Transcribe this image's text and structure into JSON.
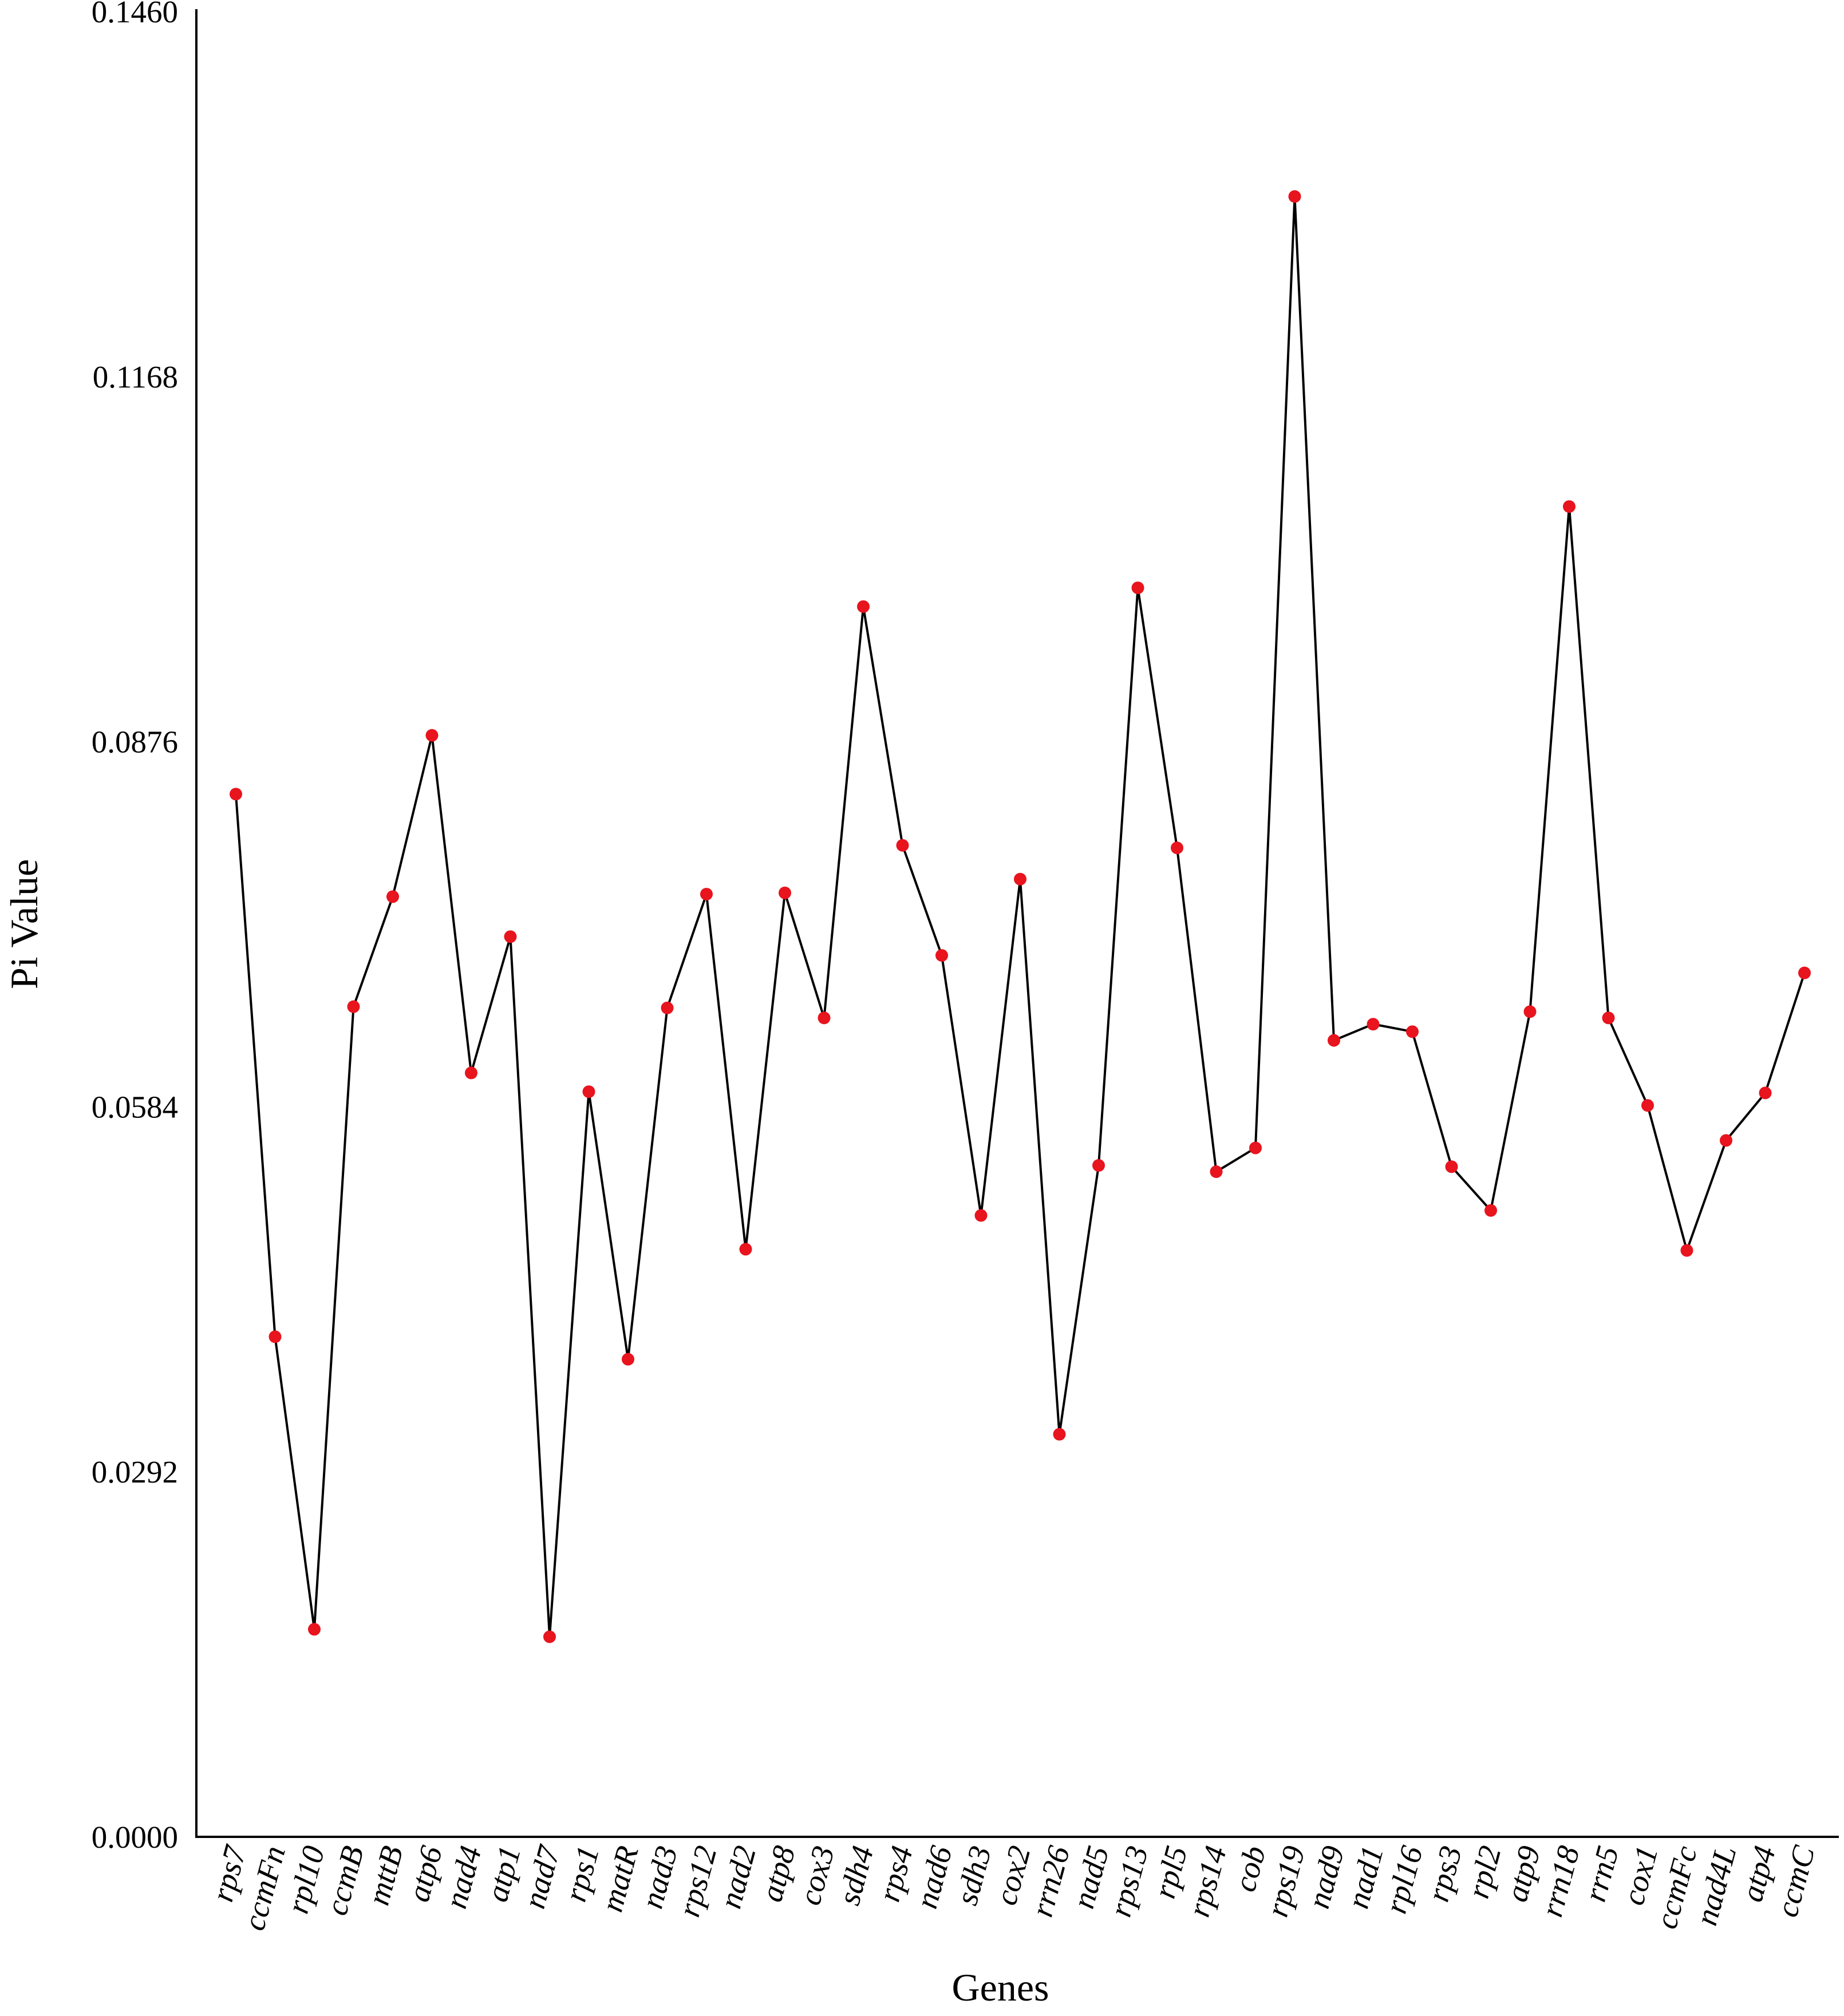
{
  "chart_data": {
    "type": "line",
    "title": "",
    "xlabel": "Genes",
    "ylabel": "Pi Value",
    "ylim": [
      0.0,
      0.146
    ],
    "yticks": [
      "0.0000",
      "0.0292",
      "0.0584",
      "0.0876",
      "0.1168",
      "0.1460"
    ],
    "grid": false,
    "legend": "none",
    "line_color": "#000000",
    "marker_color": "#e8141e",
    "categories": [
      "rps7",
      "ccmFn",
      "rpl10",
      "ccmB",
      "mttB",
      "atp6",
      "nad4",
      "atp1",
      "nad7",
      "rps1",
      "matR",
      "nad3",
      "rps12",
      "nad2",
      "atp8",
      "cox3",
      "sdh4",
      "rps4",
      "nad6",
      "sdh3",
      "cox2",
      "rrn26",
      "nad5",
      "rps13",
      "rpl5",
      "rps14",
      "cob",
      "rps19",
      "nad9",
      "nad1",
      "rpl16",
      "rps3",
      "rpl2",
      "atp9",
      "rrn18",
      "rrn5",
      "cox1",
      "ccmFc",
      "nad4L",
      "atp4",
      "ccmC"
    ],
    "series": [
      {
        "values": [
          0.0834,
          0.04,
          0.0166,
          0.0664,
          0.0752,
          0.0881,
          0.0611,
          0.072,
          0.016,
          0.0596,
          0.0382,
          0.0663,
          0.0754,
          0.047,
          0.0755,
          0.0655,
          0.0984,
          0.0793,
          0.0705,
          0.0497,
          0.0766,
          0.0322,
          0.0537,
          0.0999,
          0.0791,
          0.0532,
          0.0551,
          0.1312,
          0.0637,
          0.065,
          0.0644,
          0.0536,
          0.0501,
          0.066,
          0.1064,
          0.0655,
          0.0585,
          0.0469,
          0.0557,
          0.0595,
          0.0691
        ]
      }
    ]
  }
}
